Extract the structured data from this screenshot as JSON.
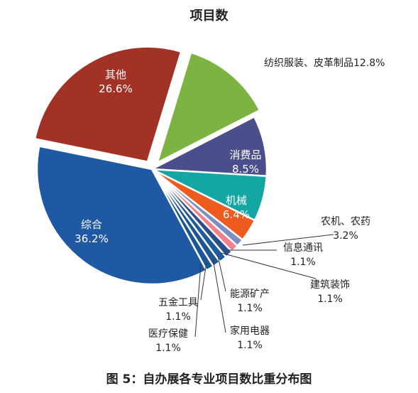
{
  "chart_data": {
    "type": "pie",
    "title": "项目数",
    "caption": "图 5：自办展各专业项目数比重分布图",
    "slices": [
      {
        "label": "纺织服装、皮革制品",
        "value": 12.8,
        "value_label": "12.8%",
        "color": "#7cb342"
      },
      {
        "label": "消费品",
        "value": 8.5,
        "value_label": "8.5%",
        "color": "#4a4f8c"
      },
      {
        "label": "机械",
        "value": 6.4,
        "value_label": "6.4%",
        "color": "#14a6a2"
      },
      {
        "label": "农机、农药",
        "value": 3.2,
        "value_label": "3.2%",
        "color": "#ef5a1e"
      },
      {
        "label": "信息通讯",
        "value": 1.1,
        "value_label": "1.1%",
        "color": "#7d8fc0"
      },
      {
        "label": "建筑装饰",
        "value": 1.1,
        "value_label": "1.1%",
        "color": "#f27f8a"
      },
      {
        "label": "家用电器",
        "value": 1.1,
        "value_label": "1.1%",
        "color": "#2c4f8c"
      },
      {
        "label": "能源矿产",
        "value": 1.1,
        "value_label": "1.1%",
        "color": "#1f5a9a"
      },
      {
        "label": "医疗保健",
        "value": 1.1,
        "value_label": "1.1%",
        "color": "#1d5595"
      },
      {
        "label": "五金工具",
        "value": 1.1,
        "value_label": "1.1%",
        "color": "#1b5797"
      },
      {
        "label": "综合",
        "value": 36.2,
        "value_label": "36.2%",
        "color": "#1f58a3"
      },
      {
        "label": "其他",
        "value": 26.6,
        "value_label": "26.6%",
        "color": "#a23226"
      }
    ]
  }
}
